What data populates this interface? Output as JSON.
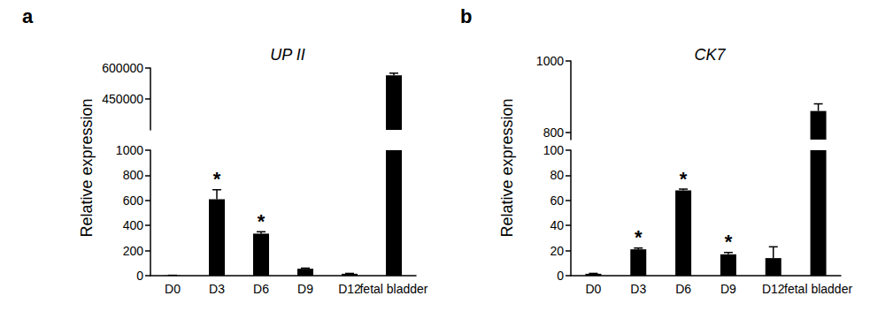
{
  "chart_data": [
    {
      "type": "bar",
      "panel_label": "a",
      "title": "UP II",
      "y_label": "Relative expression",
      "categories": [
        "D0",
        "D3",
        "D6",
        "D9",
        "D12",
        "fetal bladder"
      ],
      "values": [
        2,
        610,
        335,
        55,
        15,
        565000
      ],
      "errors": [
        1,
        75,
        15,
        5,
        3,
        10000
      ],
      "color": "#000000",
      "annotations": [
        {
          "category": "D3",
          "text": "*"
        },
        {
          "category": "D6",
          "text": "*"
        }
      ],
      "y_segments": [
        {
          "ylim": [
            0,
            1000
          ],
          "yticks": [
            0,
            200,
            400,
            600,
            800,
            1000
          ]
        },
        {
          "ylim": [
            300000,
            600000
          ],
          "yticks": [
            450000,
            600000
          ]
        }
      ]
    },
    {
      "type": "bar",
      "panel_label": "b",
      "title": "CK7",
      "y_label": "Relative expression",
      "categories": [
        "D0",
        "D3",
        "D6",
        "D9",
        "D12",
        "fetal bladder"
      ],
      "values": [
        1.5,
        21,
        68,
        17,
        14,
        860
      ],
      "errors": [
        0.3,
        1,
        1,
        1.5,
        9,
        20
      ],
      "color": "#000000",
      "annotations": [
        {
          "category": "D3",
          "text": "*"
        },
        {
          "category": "D6",
          "text": "*"
        },
        {
          "category": "D9",
          "text": "*"
        }
      ],
      "y_segments": [
        {
          "ylim": [
            0,
            100
          ],
          "yticks": [
            0,
            20,
            40,
            60,
            80,
            100
          ]
        },
        {
          "ylim": [
            780,
            1000
          ],
          "yticks": [
            800,
            1000
          ]
        }
      ]
    }
  ]
}
